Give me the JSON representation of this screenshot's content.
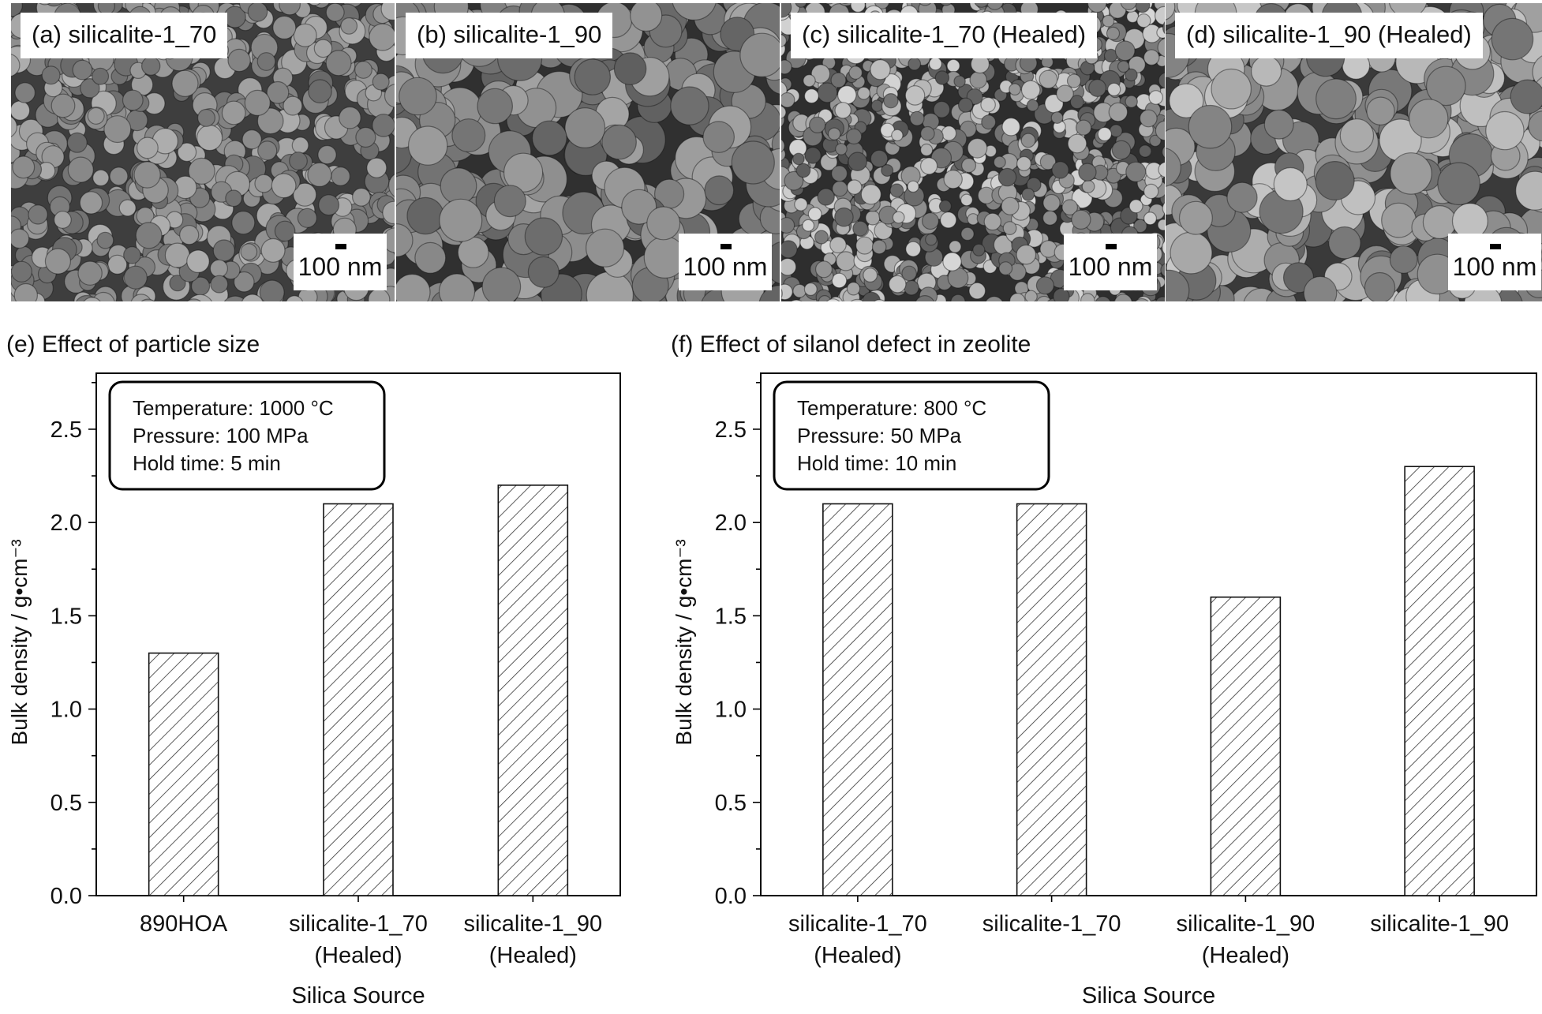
{
  "sem_panels": [
    {
      "label": "(a) silicalite-1_70",
      "scale_label": "100 nm"
    },
    {
      "label": "(b) silicalite-1_90",
      "scale_label": "100 nm"
    },
    {
      "label": "(c) silicalite-1_70 (Healed)",
      "scale_label": "100 nm"
    },
    {
      "label": "(d) silicalite-1_90 (Healed)",
      "scale_label": "100 nm"
    }
  ],
  "chart_data": [
    {
      "type": "bar",
      "title": "(e) Effect of particle size",
      "categories": [
        [
          "890HOA"
        ],
        [
          "silicalite-1_70",
          "(Healed)"
        ],
        [
          "silicalite-1_90",
          "(Healed)"
        ]
      ],
      "values": [
        1.3,
        2.1,
        2.2
      ],
      "xlabel": "Silica Source",
      "ylabel": "Bulk density / g•cm⁻³",
      "ylim": [
        0,
        2.8
      ],
      "yticks": [
        "0.0",
        "0.5",
        "1.0",
        "1.5",
        "2.0",
        "2.5"
      ],
      "bar_fill": "hatched",
      "annotation": [
        "Temperature: 1000 °C",
        "Pressure: 100 MPa",
        "Hold time: 5 min"
      ]
    },
    {
      "type": "bar",
      "title": "(f) Effect of silanol defect in zeolite",
      "categories": [
        [
          "silicalite-1_70",
          "(Healed)"
        ],
        [
          "silicalite-1_70"
        ],
        [
          "silicalite-1_90",
          "(Healed)"
        ],
        [
          "silicalite-1_90"
        ]
      ],
      "values": [
        2.1,
        2.1,
        1.6,
        2.3
      ],
      "xlabel": "Silica Source",
      "ylabel": "Bulk density / g•cm⁻³",
      "ylim": [
        0,
        2.8
      ],
      "yticks": [
        "0.0",
        "0.5",
        "1.0",
        "1.5",
        "2.0",
        "2.5"
      ],
      "bar_fill": "hatched",
      "annotation": [
        "Temperature: 800 °C",
        "Pressure: 50 MPa",
        "Hold time: 10 min"
      ]
    }
  ]
}
